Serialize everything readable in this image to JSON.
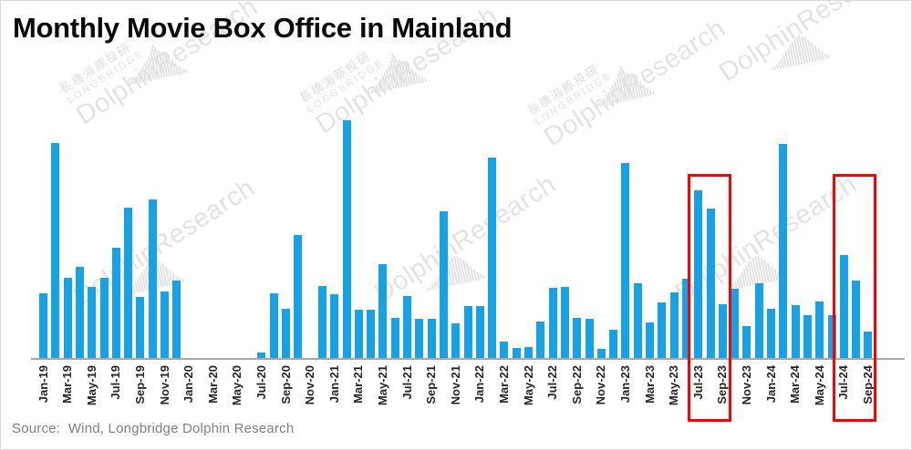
{
  "title": "Monthly Movie Box Office in Mainland",
  "source": "Source:  Wind, Longbridge Dolphin Research",
  "watermark": {
    "cn": "長橋海豚投研",
    "brand": "LONGBRIDGE",
    "research": "DolphinResearch"
  },
  "colors": {
    "bar": "#17a2e6",
    "highlight": "#ff0000",
    "axis": "#a7a7a7",
    "title": "#0a0a0a",
    "source": "#7f7f7f",
    "watermark": "#e3e3e3"
  },
  "chart_data": {
    "type": "bar",
    "title": "Monthly Movie Box Office in Mainland",
    "xlabel": "",
    "ylabel": "",
    "ylim": [
      0,
      130
    ],
    "grid": false,
    "legend": "none",
    "x_tick_every": 2,
    "categories": [
      "Jan-19",
      "Feb-19",
      "Mar-19",
      "Apr-19",
      "May-19",
      "Jun-19",
      "Jul-19",
      "Aug-19",
      "Sep-19",
      "Oct-19",
      "Nov-19",
      "Dec-19",
      "Jan-20",
      "Feb-20",
      "Mar-20",
      "Apr-20",
      "May-20",
      "Jun-20",
      "Jul-20",
      "Aug-20",
      "Sep-20",
      "Oct-20",
      "Nov-20",
      "Dec-20",
      "Jan-21",
      "Feb-21",
      "Mar-21",
      "Apr-21",
      "May-21",
      "Jun-21",
      "Jul-21",
      "Aug-21",
      "Sep-21",
      "Oct-21",
      "Nov-21",
      "Dec-21",
      "Jan-22",
      "Feb-22",
      "Mar-22",
      "Apr-22",
      "May-22",
      "Jun-22",
      "Jul-22",
      "Aug-22",
      "Sep-22",
      "Oct-22",
      "Nov-22",
      "Dec-22",
      "Jan-23",
      "Feb-23",
      "Mar-23",
      "Apr-23",
      "May-23",
      "Jun-23",
      "Jul-23",
      "Aug-23",
      "Sep-23",
      "Oct-23",
      "Nov-23",
      "Dec-23",
      "Jan-24",
      "Feb-24",
      "Mar-24",
      "Apr-24",
      "May-24",
      "Jun-24",
      "Jul-24",
      "Aug-24",
      "Sep-24"
    ],
    "values": [
      33.7,
      110.9,
      41.5,
      47.1,
      36.8,
      41.8,
      57.1,
      77.8,
      31.8,
      81.7,
      34.6,
      40.4,
      0,
      0,
      0,
      0,
      0,
      0,
      3.2,
      33.9,
      25.6,
      63.6,
      0,
      37.6,
      33.0,
      122.6,
      25.1,
      25.1,
      48.7,
      21.2,
      32.1,
      20.6,
      20.6,
      75.8,
      18.2,
      27.1,
      27.1,
      103.4,
      8.9,
      5.8,
      6.0,
      19.3,
      36.6,
      37.0,
      20.9,
      20.6,
      5.3,
      15.1,
      100.5,
      38.8,
      18.7,
      29.0,
      34.1,
      41.2,
      86.8,
      77.3,
      28.1,
      36.0,
      16.8,
      39.0,
      25.7,
      110.4,
      27.8,
      22.3,
      29.7,
      22.3,
      53.5,
      40.2,
      14.2
    ],
    "highlights": [
      {
        "from": "Jul-23",
        "to": "Sep-23"
      },
      {
        "from": "Jul-24",
        "to": "Sep-24"
      }
    ]
  }
}
